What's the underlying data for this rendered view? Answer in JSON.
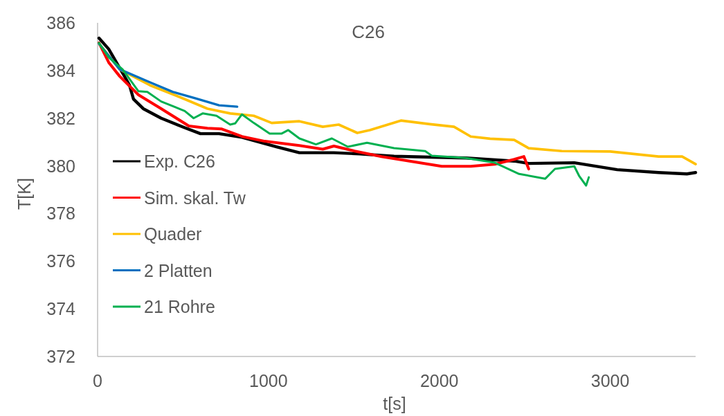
{
  "chart_data": {
    "type": "line",
    "title": "C26",
    "xlabel": "t[s]",
    "ylabel": "T[K]",
    "xlim": [
      0,
      3500
    ],
    "xticks": [
      0,
      1000,
      2000,
      3000
    ],
    "ylim": [
      372,
      386
    ],
    "yticks": [
      372,
      374,
      376,
      378,
      380,
      382,
      384,
      386
    ],
    "grid": false,
    "legend": "left",
    "marker": "none",
    "line_style": "solid",
    "series": [
      {
        "name": "Exp. C26",
        "color": "#000000",
        "x": [
          8,
          65,
          186,
          210,
          267,
          372,
          510,
          602,
          711,
          845,
          1047,
          1181,
          1383,
          1533,
          1735,
          2155,
          2438,
          2523,
          2790,
          3041,
          3283,
          3449,
          3500
        ],
        "values": [
          385.36,
          384.9,
          383.4,
          382.8,
          382.4,
          382.0,
          381.6,
          381.35,
          381.35,
          381.2,
          380.8,
          380.55,
          380.55,
          380.5,
          380.4,
          380.33,
          380.2,
          380.1,
          380.13,
          379.84,
          379.72,
          379.66,
          379.72
        ]
      },
      {
        "name": "Sim. skal. Tw",
        "color": "#ff0000",
        "x": [
          8,
          65,
          129,
          239,
          372,
          534,
          643,
          724,
          845,
          979,
          1181,
          1318,
          1383,
          1504,
          1662,
          2014,
          2184,
          2325,
          2438,
          2495,
          2523
        ],
        "values": [
          385.16,
          384.34,
          383.76,
          382.98,
          382.4,
          381.67,
          381.58,
          381.55,
          381.23,
          381.03,
          380.85,
          380.7,
          380.83,
          380.62,
          380.39,
          379.98,
          379.98,
          380.07,
          380.27,
          380.39,
          379.87
        ]
      },
      {
        "name": "Quader",
        "color": "#ffc000",
        "x": [
          8,
          129,
          307,
          510,
          643,
          776,
          914,
          1019,
          1181,
          1318,
          1411,
          1520,
          1593,
          1775,
          1945,
          2086,
          2184,
          2297,
          2438,
          2523,
          2717,
          3000,
          3283,
          3421,
          3500
        ],
        "values": [
          385.13,
          384.05,
          383.38,
          382.8,
          382.4,
          382.2,
          382.1,
          381.8,
          381.87,
          381.64,
          381.73,
          381.38,
          381.5,
          381.9,
          381.75,
          381.64,
          381.23,
          381.14,
          381.09,
          380.74,
          380.62,
          380.6,
          380.39,
          380.39,
          380.07
        ]
      },
      {
        "name": "2 Platten",
        "color": "#0070c0",
        "x": [
          8,
          129,
          307,
          441,
          574,
          711,
          817
        ],
        "values": [
          385.13,
          384.05,
          383.5,
          383.1,
          382.83,
          382.54,
          382.48
        ]
      },
      {
        "name": "21 Rohre",
        "color": "#00b050",
        "x": [
          8,
          65,
          146,
          239,
          291,
          372,
          510,
          562,
          615,
          696,
          776,
          805,
          845,
          914,
          1007,
          1076,
          1116,
          1181,
          1278,
          1371,
          1464,
          1577,
          1735,
          1917,
          1957,
          2155,
          2325,
          2467,
          2620,
          2677,
          2790,
          2818,
          2859,
          2875
        ],
        "values": [
          385.16,
          384.55,
          384.05,
          383.13,
          383.1,
          382.7,
          382.3,
          382.0,
          382.2,
          382.1,
          381.73,
          381.78,
          382.16,
          381.8,
          381.35,
          381.35,
          381.5,
          381.15,
          380.9,
          381.15,
          380.8,
          380.97,
          380.74,
          380.62,
          380.42,
          380.33,
          380.13,
          379.66,
          379.46,
          379.87,
          379.98,
          379.58,
          379.17,
          379.52
        ]
      }
    ]
  }
}
